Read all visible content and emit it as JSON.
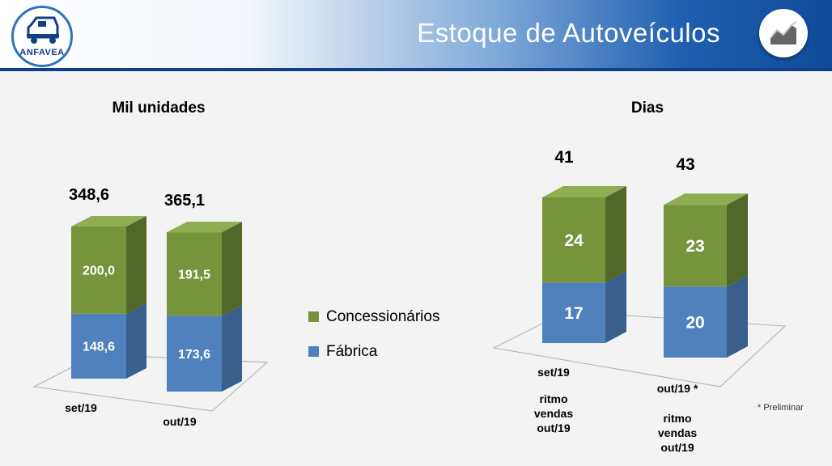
{
  "header": {
    "title": "Estoque de Autoveículos",
    "logo_text": "ANFAVEA",
    "logo_icon": "truck-icon",
    "chart_icon": "area-chart-icon",
    "colors": {
      "dark_blue": "#0f3f86",
      "blue": "#1f5fb0"
    }
  },
  "left_chart": {
    "heading": "Mil unidades",
    "categories": [
      "set/19",
      "out/19"
    ],
    "totals": [
      "348,6",
      "365,1"
    ],
    "segments": [
      {
        "fabrica": "148,6",
        "concessionarios": "200,0"
      },
      {
        "fabrica": "173,6",
        "concessionarios": "191,5"
      }
    ]
  },
  "right_chart": {
    "heading": "Dias",
    "totals": [
      "41",
      "43"
    ],
    "segments": [
      {
        "fabrica": "17",
        "concessionarios": "24"
      },
      {
        "fabrica": "20",
        "concessionarios": "23"
      }
    ],
    "x_labels": [
      {
        "top": "set/19",
        "sub": [
          "ritmo",
          "vendas",
          "out/19"
        ]
      },
      {
        "top": "out/19 *",
        "sub": [
          "ritmo",
          "vendas",
          "out/19"
        ]
      }
    ]
  },
  "legend": {
    "items": [
      {
        "label": "Concessionários",
        "color": "#77933c"
      },
      {
        "label": "Fábrica",
        "color": "#4f81bd"
      }
    ]
  },
  "footnote": "* Preliminar",
  "chart_data": [
    {
      "type": "bar",
      "stacked": true,
      "title": "Mil unidades",
      "categories": [
        "set/19",
        "out/19"
      ],
      "series": [
        {
          "name": "Fábrica",
          "values": [
            148.6,
            173.6
          ]
        },
        {
          "name": "Concessionários",
          "values": [
            200.0,
            191.5
          ]
        }
      ],
      "totals": [
        348.6,
        365.1
      ],
      "legend_position": "right"
    },
    {
      "type": "bar",
      "stacked": true,
      "title": "Dias",
      "categories": [
        "set/19",
        "out/19 *"
      ],
      "series": [
        {
          "name": "Fábrica",
          "values": [
            17,
            20
          ]
        },
        {
          "name": "Concessionários",
          "values": [
            24,
            23
          ]
        }
      ],
      "totals": [
        41,
        43
      ]
    }
  ]
}
